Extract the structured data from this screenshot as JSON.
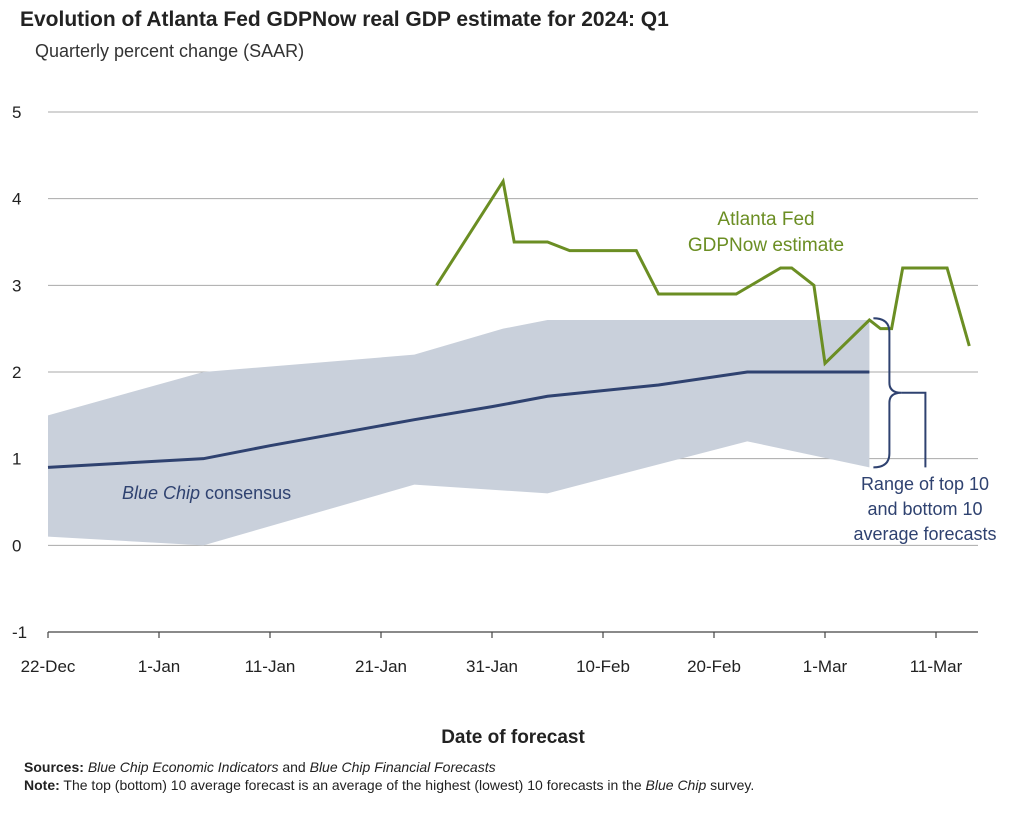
{
  "header": {
    "title": "Evolution of Atlanta Fed GDPNow real GDP estimate for 2024: Q1",
    "subtitle": "Quarterly percent change (SAAR)"
  },
  "notes": {
    "sources_label": "Sources:",
    "sources_pub1": "Blue Chip Economic Indicators",
    "sources_and": "and",
    "sources_pub2": "Blue Chip Financial Forecasts",
    "note_label": "Note:",
    "note_text_1": "The top (bottom) 10 average forecast is an average of the highest (lowest) 10 forecasts in the",
    "note_blue_chip": "Blue Chip",
    "note_text_2": "survey."
  },
  "chart_data": {
    "type": "line",
    "title": "Evolution of Atlanta Fed GDPNow real GDP estimate for 2024: Q1",
    "subtitle": "Quarterly percent change (SAAR)",
    "xlabel": "Date of forecast",
    "ylabel": "",
    "x_unit": "days since 22-Dec-2023",
    "xlim": [
      0,
      84
    ],
    "ylim": [
      -1,
      5
    ],
    "yticks": [
      -1,
      0,
      1,
      2,
      3,
      4,
      5
    ],
    "xticks": [
      {
        "day": 0,
        "label": "22-Dec"
      },
      {
        "day": 10,
        "label": "1-Jan"
      },
      {
        "day": 20,
        "label": "11-Jan"
      },
      {
        "day": 30,
        "label": "21-Jan"
      },
      {
        "day": 40,
        "label": "31-Jan"
      },
      {
        "day": 50,
        "label": "10-Feb"
      },
      {
        "day": 60,
        "label": "20-Feb"
      },
      {
        "day": 70,
        "label": "1-Mar"
      },
      {
        "day": 80,
        "label": "11-Mar"
      }
    ],
    "grid": true,
    "series": [
      {
        "name": "Atlanta Fed GDPNow estimate",
        "color": "#6b8e23",
        "points": [
          [
            35,
            3.0
          ],
          [
            37,
            3.4
          ],
          [
            41,
            4.2
          ],
          [
            42,
            3.5
          ],
          [
            45,
            3.5
          ],
          [
            47,
            3.4
          ],
          [
            53,
            3.4
          ],
          [
            55,
            2.9
          ],
          [
            62,
            2.9
          ],
          [
            66,
            3.2
          ],
          [
            67,
            3.2
          ],
          [
            69,
            3.0
          ],
          [
            70,
            2.1
          ],
          [
            74,
            2.6
          ],
          [
            75,
            2.5
          ],
          [
            76,
            2.5
          ],
          [
            77,
            3.2
          ],
          [
            81,
            3.2
          ],
          [
            83,
            2.3
          ]
        ]
      },
      {
        "name": "Blue Chip consensus",
        "color": "#2f4270",
        "points": [
          [
            0,
            0.9
          ],
          [
            14,
            1.0
          ],
          [
            20,
            1.15
          ],
          [
            33,
            1.45
          ],
          [
            40,
            1.6
          ],
          [
            45,
            1.72
          ],
          [
            55,
            1.85
          ],
          [
            63,
            2.0
          ],
          [
            74,
            2.0
          ]
        ]
      }
    ],
    "band": {
      "name": "Range of top 10 and bottom 10 average forecasts",
      "color": "#c9d0db",
      "upper": [
        [
          0,
          1.5
        ],
        [
          14,
          2.0
        ],
        [
          33,
          2.2
        ],
        [
          41,
          2.5
        ],
        [
          45,
          2.6
        ],
        [
          74,
          2.6
        ]
      ],
      "lower": [
        [
          0,
          0.1
        ],
        [
          14,
          0.0
        ],
        [
          33,
          0.7
        ],
        [
          45,
          0.6
        ],
        [
          63,
          1.2
        ],
        [
          74,
          0.9
        ]
      ]
    },
    "annotations": {
      "gdpnow_label": [
        "Atlanta Fed",
        "GDPNow estimate"
      ],
      "consensus_label_italic": "Blue Chip",
      "consensus_label_rest": " consensus",
      "range_label": [
        "Range of top 10",
        "and bottom 10",
        "average forecasts"
      ]
    }
  }
}
